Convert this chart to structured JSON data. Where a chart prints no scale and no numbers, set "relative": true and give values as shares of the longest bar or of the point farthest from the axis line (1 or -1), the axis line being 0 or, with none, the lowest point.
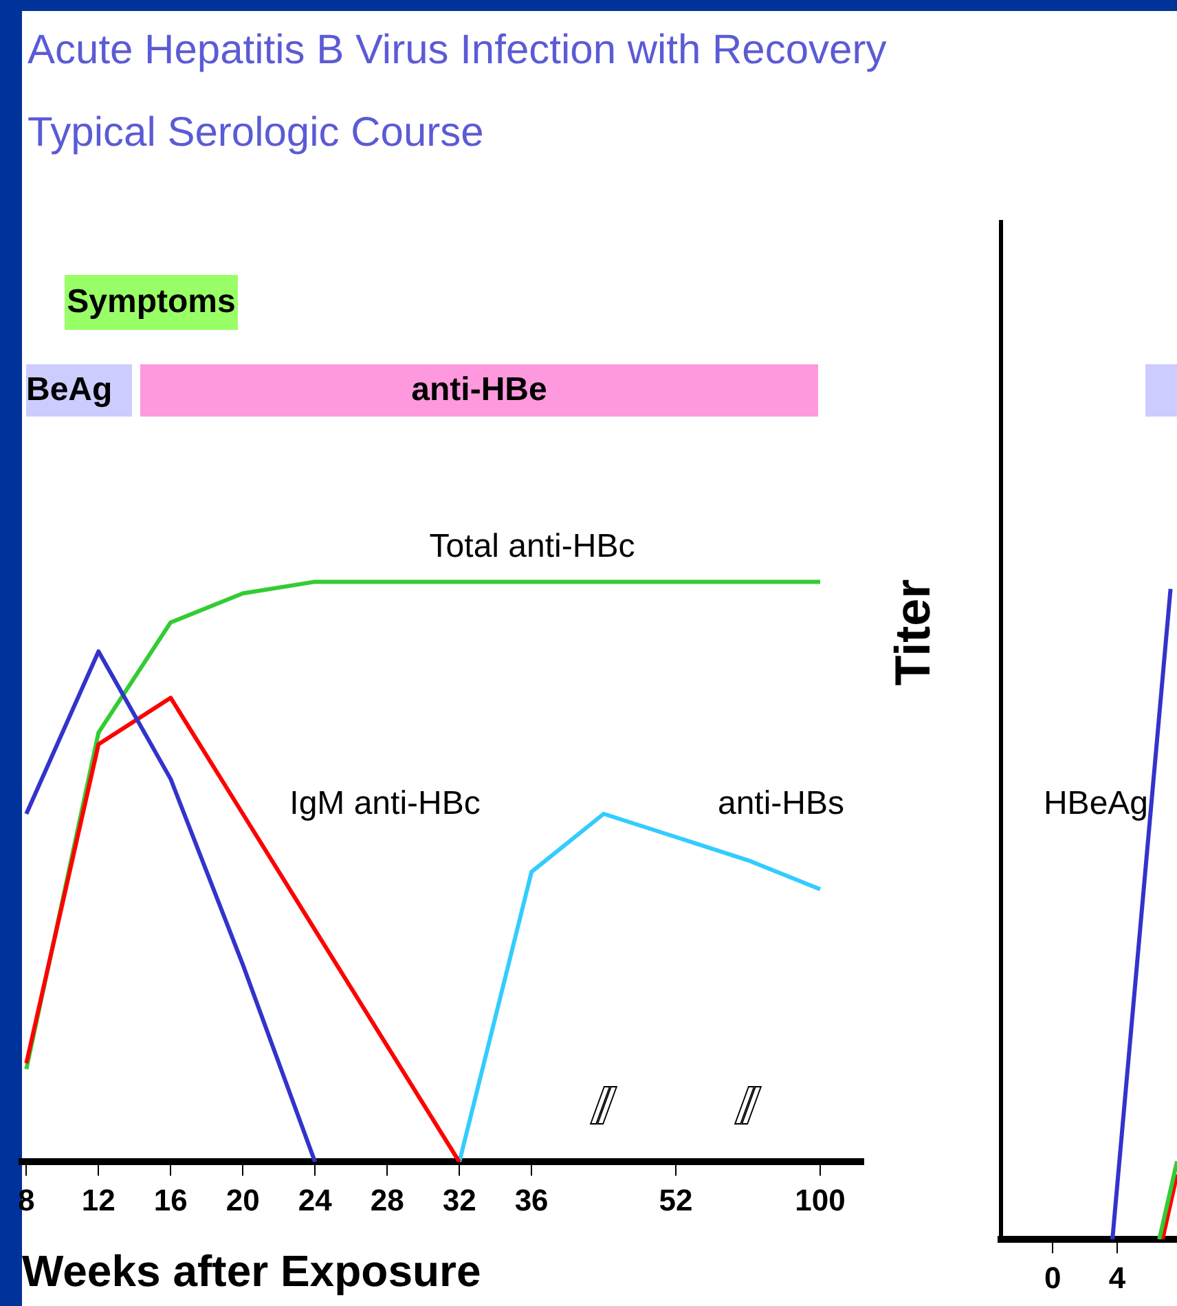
{
  "chart_data": [
    {
      "type": "line",
      "title": "Acute Hepatitis B Virus Infection with Recovery",
      "subtitle": "Typical Serologic Course",
      "xlabel": "Weeks after Exposure",
      "relative": true,
      "categories": [
        "8",
        "12",
        "16",
        "20",
        "24",
        "28",
        "32",
        "36",
        null,
        "52",
        null,
        "100"
      ],
      "series": [
        {
          "color": "#3333cc",
          "values": [
            0.6,
            0.88,
            0.66,
            0.34,
            0,
            null,
            null,
            null,
            null,
            null,
            null,
            null
          ]
        },
        {
          "color": "#ff0000",
          "values": [
            0.17,
            0.72,
            0.8,
            0.6,
            0.4,
            0.2,
            0,
            null,
            null,
            null,
            null,
            null
          ]
        },
        {
          "color": "#33cc33",
          "values": [
            0.16,
            0.74,
            0.93,
            0.98,
            1,
            1,
            1,
            1,
            1,
            1,
            1,
            1
          ]
        },
        {
          "color": "#33ccff",
          "values": [
            null,
            null,
            null,
            null,
            null,
            null,
            0,
            0.5,
            0.6,
            0.56,
            0.52,
            0.47
          ]
        }
      ],
      "annotations": [
        "Symptoms",
        "BeAg",
        "anti-HBe",
        "Total anti-HBc",
        "IgM anti-HBc",
        "anti-HBs"
      ]
    },
    {
      "type": "line",
      "ylabel": "Titer",
      "relative": true,
      "xlim": [
        -3.2,
        7.7
      ],
      "xticks": [
        0,
        4
      ],
      "series": [
        {
          "color": "#3333cc",
          "x": [
            3.7,
            7.3
          ],
          "values": [
            0,
            1
          ]
        },
        {
          "color": "#33cc33",
          "x": [
            6.6,
            7.7
          ],
          "values": [
            0,
            0.12
          ]
        },
        {
          "color": "#ff0000",
          "x": [
            6.8,
            7.7
          ],
          "values": [
            0,
            0.1
          ]
        }
      ],
      "annotations": [
        "HBeAg"
      ]
    }
  ]
}
